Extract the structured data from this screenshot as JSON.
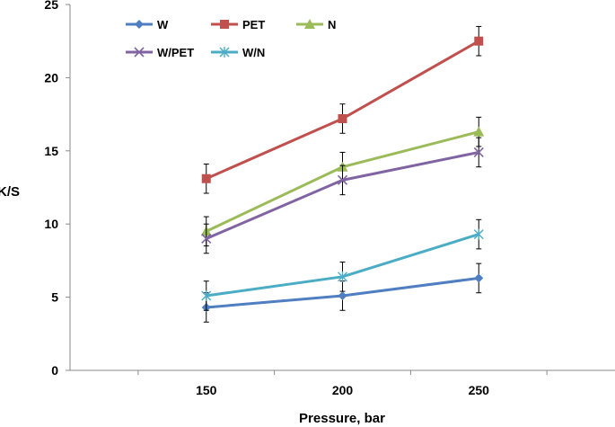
{
  "chart_data": {
    "type": "line",
    "title": "",
    "xlabel": "Pressure, bar",
    "ylabel": "K/S",
    "x_categories": [
      "150",
      "200",
      "250"
    ],
    "ylim": [
      0,
      25
    ],
    "y_ticks": [
      "0",
      "5",
      "10",
      "15",
      "20",
      "25"
    ],
    "grid": false,
    "error_bar": 1,
    "legend_position": "top-left",
    "series": [
      {
        "name": "W",
        "color": "#4f7fc1",
        "marker": "diamond",
        "values": [
          4.3,
          5.1,
          6.3
        ]
      },
      {
        "name": "PET",
        "color": "#c0504d",
        "marker": "square",
        "values": [
          13.1,
          17.2,
          22.5
        ]
      },
      {
        "name": "N",
        "color": "#9bbb59",
        "marker": "triangle",
        "values": [
          9.5,
          13.9,
          16.3
        ]
      },
      {
        "name": "W/PET",
        "color": "#8064a2",
        "marker": "x",
        "values": [
          9.0,
          13.0,
          14.9
        ]
      },
      {
        "name": "W/N",
        "color": "#4bacc6",
        "marker": "star",
        "values": [
          5.1,
          6.4,
          9.3
        ]
      }
    ]
  }
}
